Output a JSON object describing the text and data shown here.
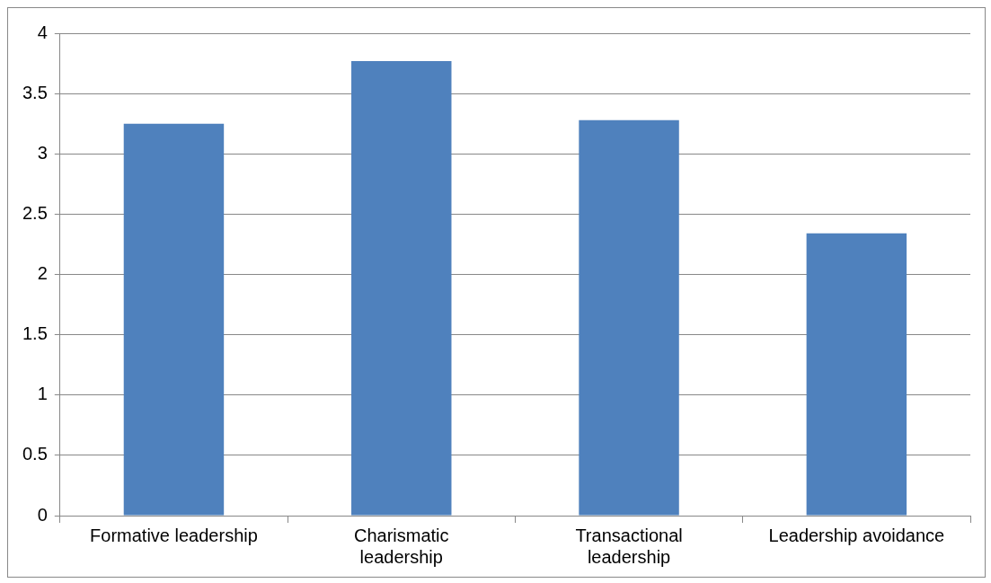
{
  "chart_data": {
    "type": "bar",
    "categories": [
      "Formative leadership",
      "Charismatic leadership",
      "Transactional leadership",
      "Leadership avoidance"
    ],
    "values": [
      3.25,
      3.77,
      3.28,
      2.34
    ],
    "color": "#4f81bd",
    "ylim": [
      0,
      4
    ],
    "yticks": [
      0,
      0.5,
      1,
      1.5,
      2,
      2.5,
      3,
      3.5,
      4
    ],
    "grid": "y",
    "legend": false
  }
}
